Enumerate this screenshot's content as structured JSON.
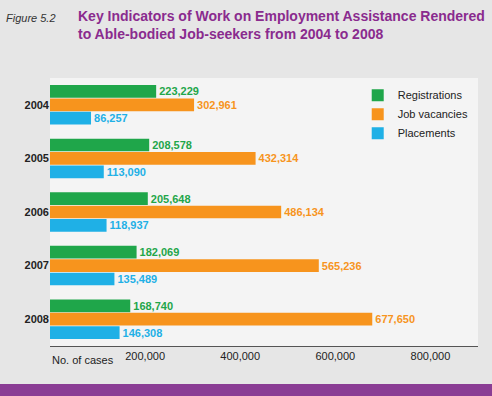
{
  "chart_data": {
    "type": "bar",
    "orientation": "horizontal",
    "figure_label": "Figure 5.2",
    "title": "Key Indicators of Work on Employment Assistance Rendered to Able-bodied Job-seekers from 2004 to 2008",
    "x_label": "No. of cases",
    "categories": [
      "2004",
      "2005",
      "2006",
      "2007",
      "2008"
    ],
    "series": [
      {
        "name": "Registrations",
        "color": "#1fa64a",
        "values": [
          223229,
          208578,
          205648,
          182069,
          168740
        ],
        "value_labels": [
          "223,229",
          "208,578",
          "205,648",
          "182,069",
          "168,740"
        ]
      },
      {
        "name": "Job vacancies",
        "color": "#f7941d",
        "values": [
          302961,
          432314,
          486134,
          565236,
          677650
        ],
        "value_labels": [
          "302,961",
          "432,314",
          "486,134",
          "565,236",
          "677,650"
        ]
      },
      {
        "name": "Placements",
        "color": "#1fb0e6",
        "values": [
          86257,
          113090,
          118937,
          135489,
          146308
        ],
        "value_labels": [
          "86,257",
          "113,090",
          "118,937",
          "135,489",
          "146,308"
        ]
      }
    ],
    "xlim": [
      0,
      900000
    ],
    "xticks": [
      {
        "value": 200000,
        "label": "200,000"
      },
      {
        "value": 400000,
        "label": "400,000"
      },
      {
        "value": 600000,
        "label": "600,000"
      },
      {
        "value": 800000,
        "label": "800,000"
      }
    ],
    "grid": false,
    "data_labels": true,
    "legend": "top right"
  }
}
